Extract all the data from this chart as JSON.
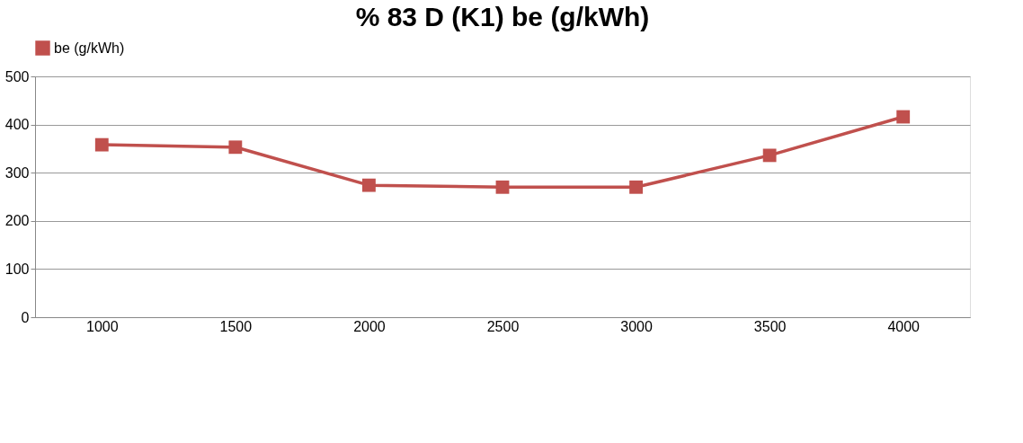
{
  "chart_data": {
    "type": "line",
    "title": "% 83 D (K1) be (g/kWh)",
    "categories": [
      "1000",
      "1500",
      "2000",
      "2500",
      "3000",
      "3500",
      "4000"
    ],
    "series": [
      {
        "name": "be (g/kWh)",
        "color": "#c0504d",
        "values": [
          358,
          353,
          274,
          270,
          270,
          336,
          416
        ]
      }
    ],
    "ylim": [
      0,
      500
    ],
    "yticks": [
      0,
      100,
      200,
      300,
      400,
      500
    ],
    "grid": "y",
    "legend": "top",
    "marker": "square",
    "line_style": "solid"
  }
}
